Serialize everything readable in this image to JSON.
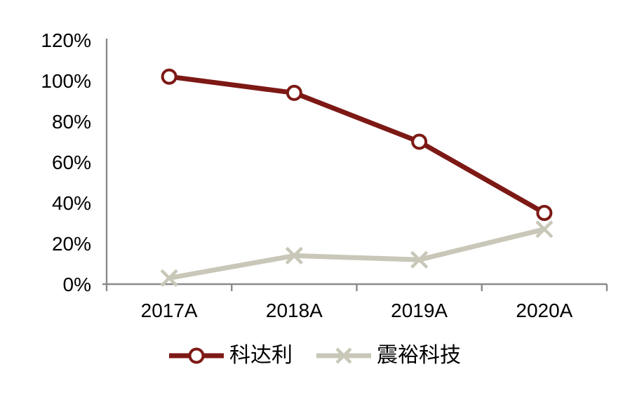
{
  "chart_data": {
    "type": "line",
    "categories": [
      "2017A",
      "2018A",
      "2019A",
      "2020A"
    ],
    "series": [
      {
        "name": "科达利",
        "values": [
          102,
          94,
          70,
          35
        ],
        "color": "#7D1915",
        "marker": "circle"
      },
      {
        "name": "震裕科技",
        "values": [
          3,
          14,
          12,
          27
        ],
        "color": "#C9C7B8",
        "marker": "x"
      }
    ],
    "ylim": [
      0,
      120
    ],
    "ytick_step": 20,
    "ytick_labels": [
      "0%",
      "20%",
      "40%",
      "60%",
      "80%",
      "100%",
      "120%"
    ],
    "xlabel": "",
    "ylabel": "",
    "title": "",
    "grid": false,
    "legend_position": "bottom",
    "colors": {
      "axis": "#8A8A8A",
      "tick_text": "#000000",
      "background": "#FFFFFF",
      "marker_fill": "#FFFFFF"
    }
  }
}
